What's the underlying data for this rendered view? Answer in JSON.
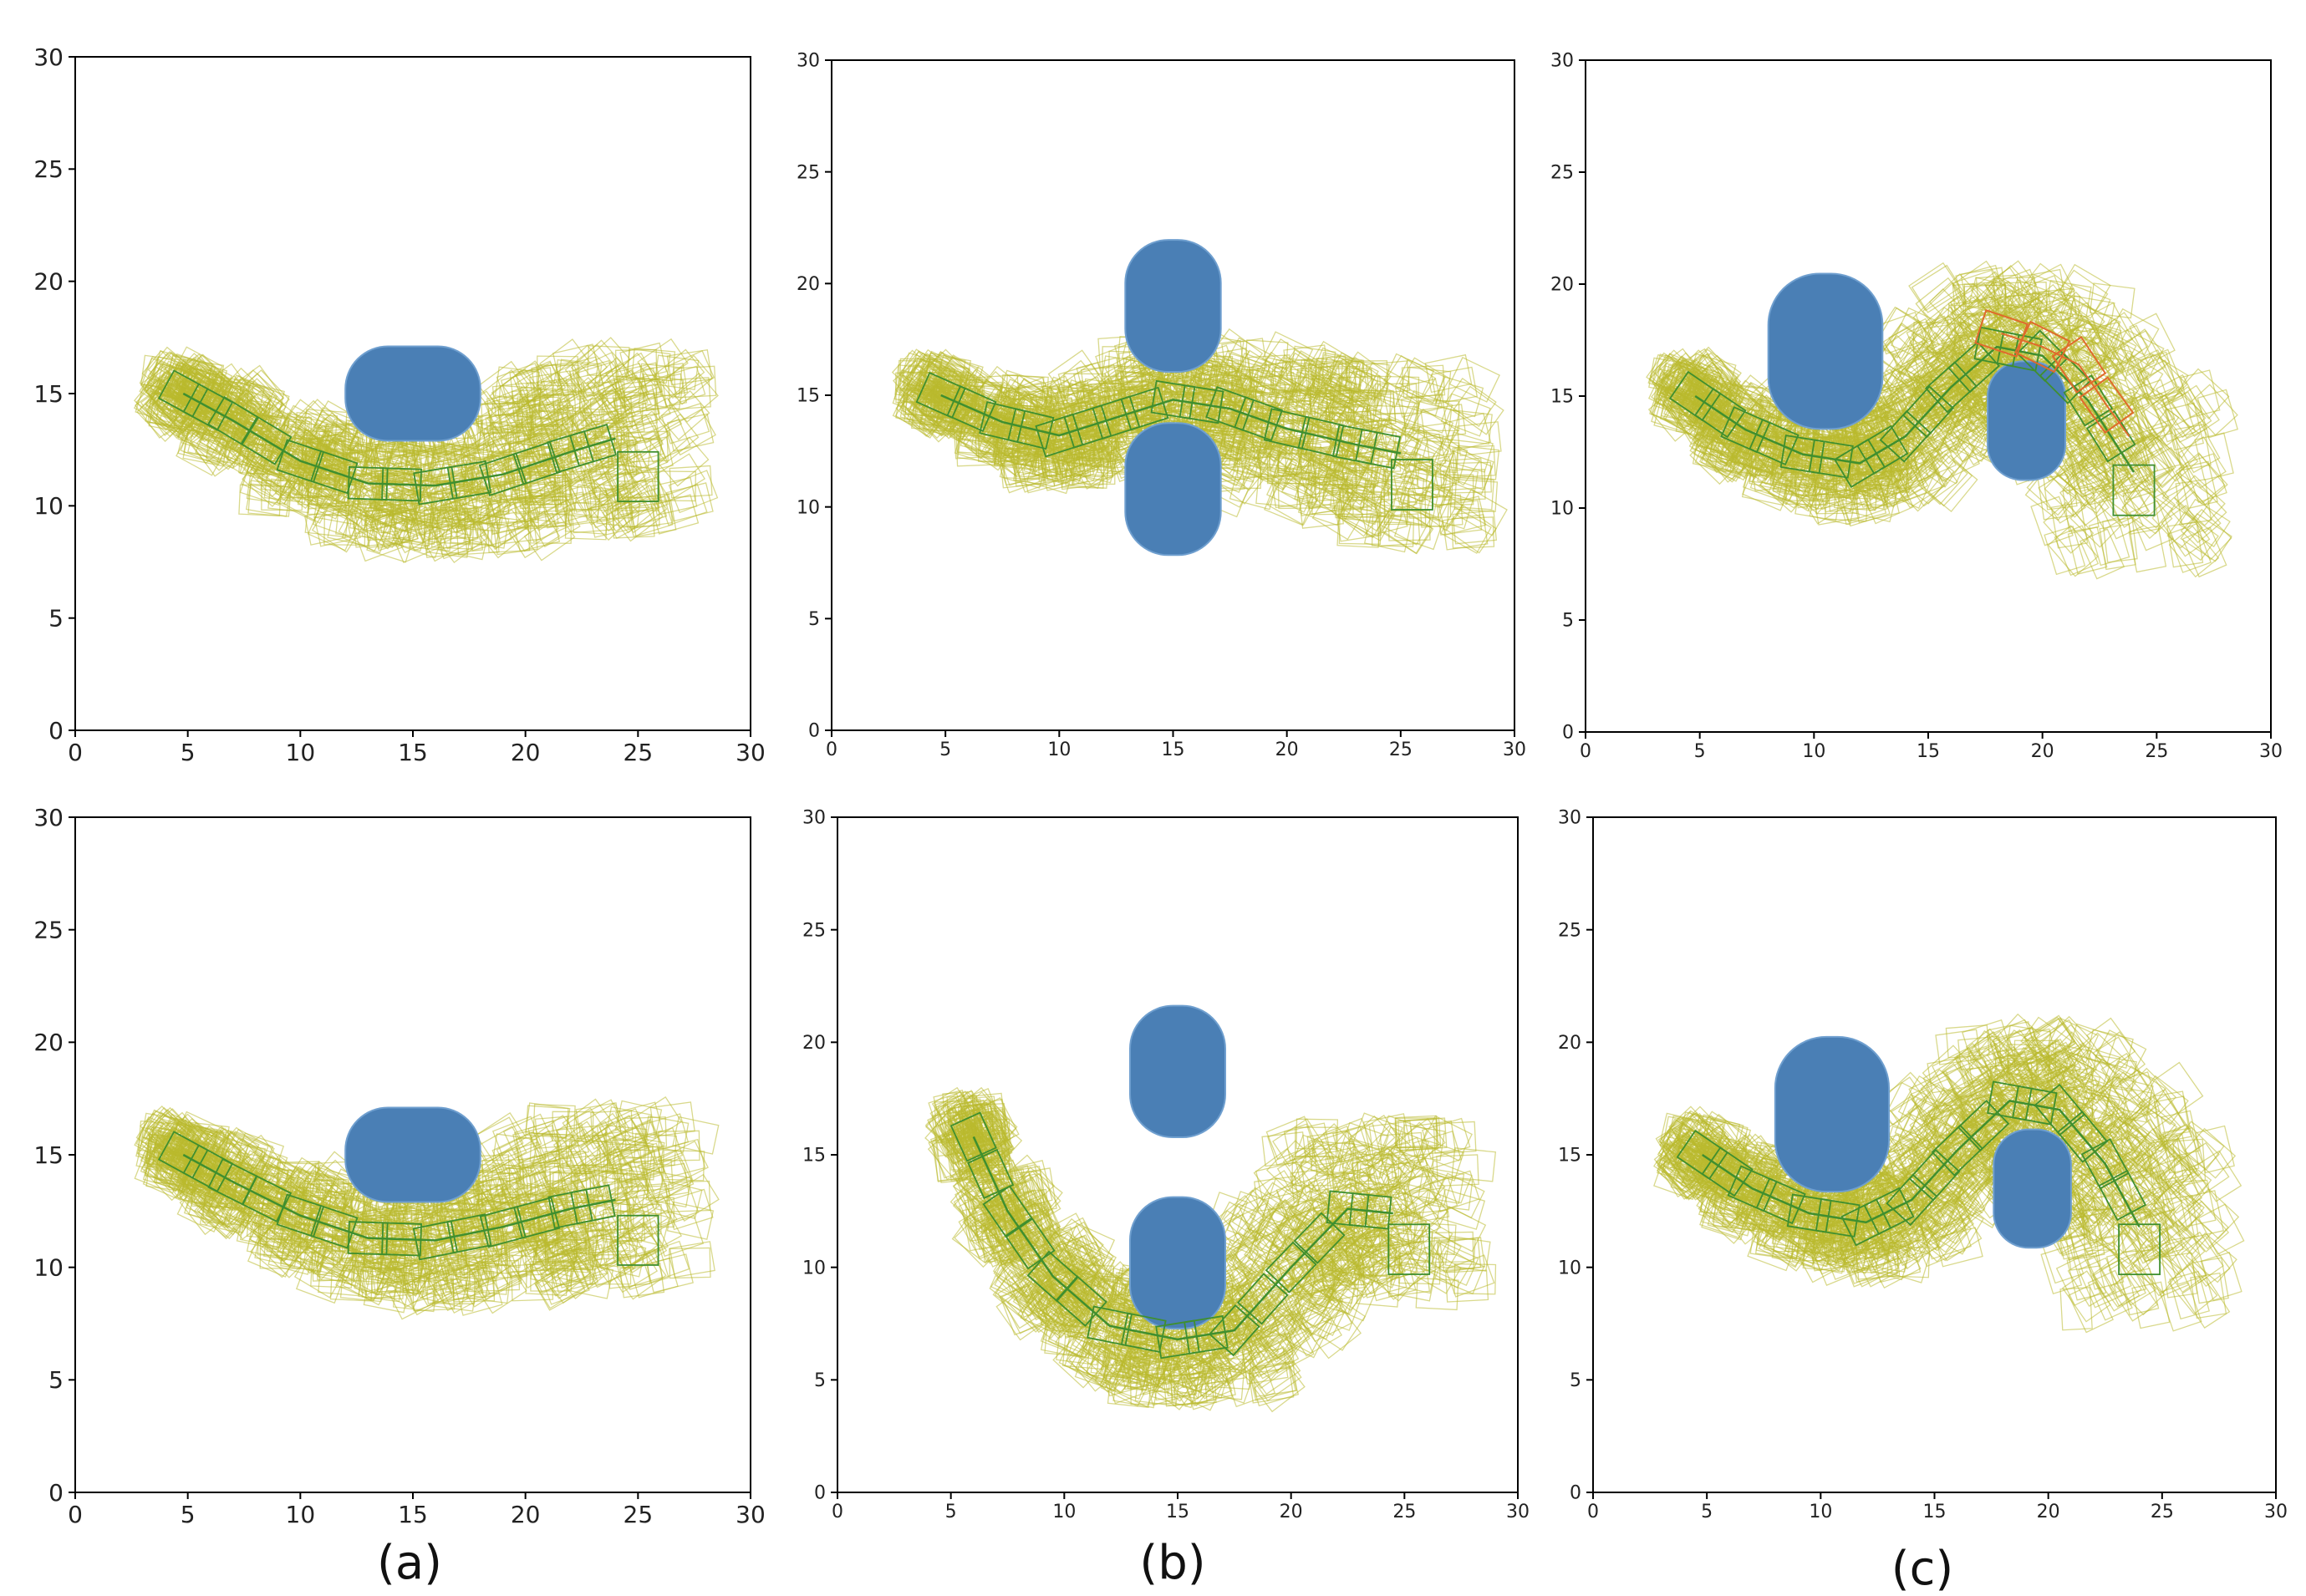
{
  "figure": {
    "captions": [
      "(a)",
      "(b)",
      "(c)"
    ]
  },
  "colors": {
    "obstacle": "#4a7fb5",
    "sampled_footprint": "#b9b92d",
    "planned_footprint": "#3f8f2f",
    "collision_footprint": "#e06a2c",
    "axes": "#000000"
  },
  "chart_data": [
    {
      "id": "a-top",
      "type": "scatter",
      "xlim": [
        0,
        30
      ],
      "ylim": [
        0,
        30
      ],
      "xticks": [
        0,
        5,
        10,
        15,
        20,
        25,
        30
      ],
      "yticks": [
        0,
        5,
        10,
        15,
        20,
        25,
        30
      ],
      "obstacles": [
        {
          "type": "capsule-h",
          "cx": 15,
          "cy": 15,
          "w": 6,
          "h": 4.2
        }
      ],
      "planned_path": [
        [
          4.8,
          15
        ],
        [
          7,
          13.8
        ],
        [
          10,
          12
        ],
        [
          13,
          11
        ],
        [
          16,
          10.9
        ],
        [
          19,
          11.4
        ],
        [
          22,
          12.4
        ],
        [
          24,
          13
        ]
      ],
      "end_box": [
        25,
        11.5
      ],
      "collision_path": []
    },
    {
      "id": "b-top",
      "type": "scatter",
      "xlim": [
        0,
        30
      ],
      "ylim": [
        0,
        30
      ],
      "xticks": [
        0,
        5,
        10,
        15,
        20,
        25,
        30
      ],
      "yticks": [
        0,
        5,
        10,
        15,
        20,
        25,
        30
      ],
      "obstacles": [
        {
          "type": "capsule-v",
          "cx": 15,
          "cy": 19,
          "w": 4.2,
          "h": 5.8
        },
        {
          "type": "capsule-v",
          "cx": 15,
          "cy": 10.8,
          "w": 4.2,
          "h": 5.8
        }
      ],
      "planned_path": [
        [
          4.8,
          15
        ],
        [
          7.5,
          13.8
        ],
        [
          10,
          13.2
        ],
        [
          12.5,
          14
        ],
        [
          15,
          14.8
        ],
        [
          17.5,
          14.4
        ],
        [
          20,
          13.5
        ],
        [
          23,
          12.8
        ],
        [
          25,
          12.4
        ]
      ],
      "end_box": [
        25.5,
        11.2
      ],
      "collision_path": []
    },
    {
      "id": "c-top",
      "type": "scatter",
      "xlim": [
        0,
        30
      ],
      "ylim": [
        0,
        30
      ],
      "xticks": [
        0,
        5,
        10,
        15,
        20,
        25,
        30
      ],
      "yticks": [
        0,
        5,
        10,
        15,
        20,
        25,
        30
      ],
      "obstacles": [
        {
          "type": "capsule-v",
          "cx": 10.5,
          "cy": 17,
          "w": 5,
          "h": 6.8
        },
        {
          "type": "capsule-v",
          "cx": 19.3,
          "cy": 13.9,
          "w": 3.4,
          "h": 5.2
        }
      ],
      "planned_path": [
        [
          4.8,
          15
        ],
        [
          7,
          13.5
        ],
        [
          9.5,
          12.4
        ],
        [
          12,
          12
        ],
        [
          14,
          13.2
        ],
        [
          16,
          15.4
        ],
        [
          18,
          17.2
        ],
        [
          20,
          16.8
        ],
        [
          22,
          14.8
        ],
        [
          24,
          11.6
        ]
      ],
      "end_box": [
        24,
        11
      ],
      "collision_path": [
        [
          18.2,
          17.8
        ],
        [
          20,
          17.2
        ],
        [
          21.6,
          16.4
        ],
        [
          22.8,
          14.6
        ],
        [
          23.8,
          13.2
        ]
      ]
    },
    {
      "id": "a-bottom",
      "type": "scatter",
      "xlim": [
        0,
        30
      ],
      "ylim": [
        0,
        30
      ],
      "xticks": [
        0,
        5,
        10,
        15,
        20,
        25,
        30
      ],
      "yticks": [
        0,
        5,
        10,
        15,
        20,
        25,
        30
      ],
      "obstacles": [
        {
          "type": "capsule-h",
          "cx": 15,
          "cy": 15,
          "w": 6,
          "h": 4.2
        }
      ],
      "planned_path": [
        [
          4.8,
          15
        ],
        [
          7,
          13.8
        ],
        [
          10,
          12.3
        ],
        [
          13,
          11.3
        ],
        [
          16,
          11.2
        ],
        [
          19,
          11.8
        ],
        [
          22,
          12.6
        ],
        [
          24,
          13
        ]
      ],
      "end_box": [
        25,
        11.4
      ],
      "collision_path": []
    },
    {
      "id": "b-bottom",
      "type": "scatter",
      "xlim": [
        0,
        30
      ],
      "ylim": [
        0,
        30
      ],
      "xticks": [
        0,
        5,
        10,
        15,
        20,
        25,
        30
      ],
      "yticks": [
        0,
        5,
        10,
        15,
        20,
        25,
        30
      ],
      "obstacles": [
        {
          "type": "capsule-v",
          "cx": 15,
          "cy": 18.7,
          "w": 4.2,
          "h": 5.8
        },
        {
          "type": "capsule-v",
          "cx": 15,
          "cy": 10.2,
          "w": 4.2,
          "h": 5.8
        }
      ],
      "planned_path": [
        [
          6,
          15.8
        ],
        [
          7.5,
          12.5
        ],
        [
          9.5,
          9.6
        ],
        [
          12,
          7.4
        ],
        [
          15,
          6.8
        ],
        [
          17.5,
          7.2
        ],
        [
          20,
          10
        ],
        [
          22.5,
          12.6
        ],
        [
          24.5,
          12.4
        ]
      ],
      "end_box": [
        25.2,
        11
      ],
      "collision_path": []
    },
    {
      "id": "c-bottom",
      "type": "scatter",
      "xlim": [
        0,
        30
      ],
      "ylim": [
        0,
        30
      ],
      "xticks": [
        0,
        5,
        10,
        15,
        20,
        25,
        30
      ],
      "yticks": [
        0,
        5,
        10,
        15,
        20,
        25,
        30
      ],
      "obstacles": [
        {
          "type": "capsule-v",
          "cx": 10.5,
          "cy": 16.8,
          "w": 5,
          "h": 6.8
        },
        {
          "type": "capsule-v",
          "cx": 19.3,
          "cy": 13.5,
          "w": 3.4,
          "h": 5.2
        }
      ],
      "planned_path": [
        [
          4.8,
          15
        ],
        [
          7,
          13.5
        ],
        [
          9.5,
          12.4
        ],
        [
          12,
          12
        ],
        [
          14,
          13
        ],
        [
          16,
          15.2
        ],
        [
          18.3,
          17.4
        ],
        [
          20.5,
          17
        ],
        [
          22.5,
          14.6
        ],
        [
          24,
          11.8
        ]
      ],
      "end_box": [
        24,
        11
      ],
      "collision_path": []
    }
  ]
}
